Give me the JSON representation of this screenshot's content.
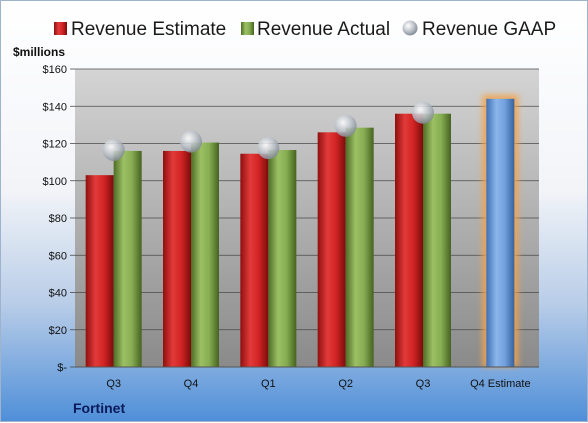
{
  "chart_data": {
    "type": "bar",
    "company": "Fortinet",
    "unit_label": "$millions",
    "categories": [
      "Q3",
      "Q4",
      "Q1",
      "Q2",
      "Q3",
      "Q4 Estimate"
    ],
    "yticks": [
      "$-",
      "$20",
      "$40",
      "$60",
      "$80",
      "$100",
      "$120",
      "$140",
      "$160"
    ],
    "ylim": [
      0,
      160
    ],
    "grid": true,
    "legend_position": "top",
    "series": [
      {
        "name": "Revenue Estimate",
        "kind": "bar",
        "color": "#cc1f1f",
        "values": [
          103,
          116,
          114.5,
          126,
          136,
          null
        ]
      },
      {
        "name": "Revenue Actual",
        "kind": "bar",
        "color": "#79a04a",
        "values": [
          116,
          120.5,
          116.5,
          128.5,
          136,
          null
        ]
      },
      {
        "name": "Revenue GAAP",
        "kind": "marker",
        "color": "#b8bfc8",
        "values": [
          116.5,
          121,
          117.5,
          129.5,
          136.5,
          null
        ]
      },
      {
        "name": "",
        "kind": "bar",
        "color": "#6b9ad6",
        "highlight": "#f3a34b",
        "values": [
          null,
          null,
          null,
          null,
          null,
          144
        ]
      }
    ]
  }
}
